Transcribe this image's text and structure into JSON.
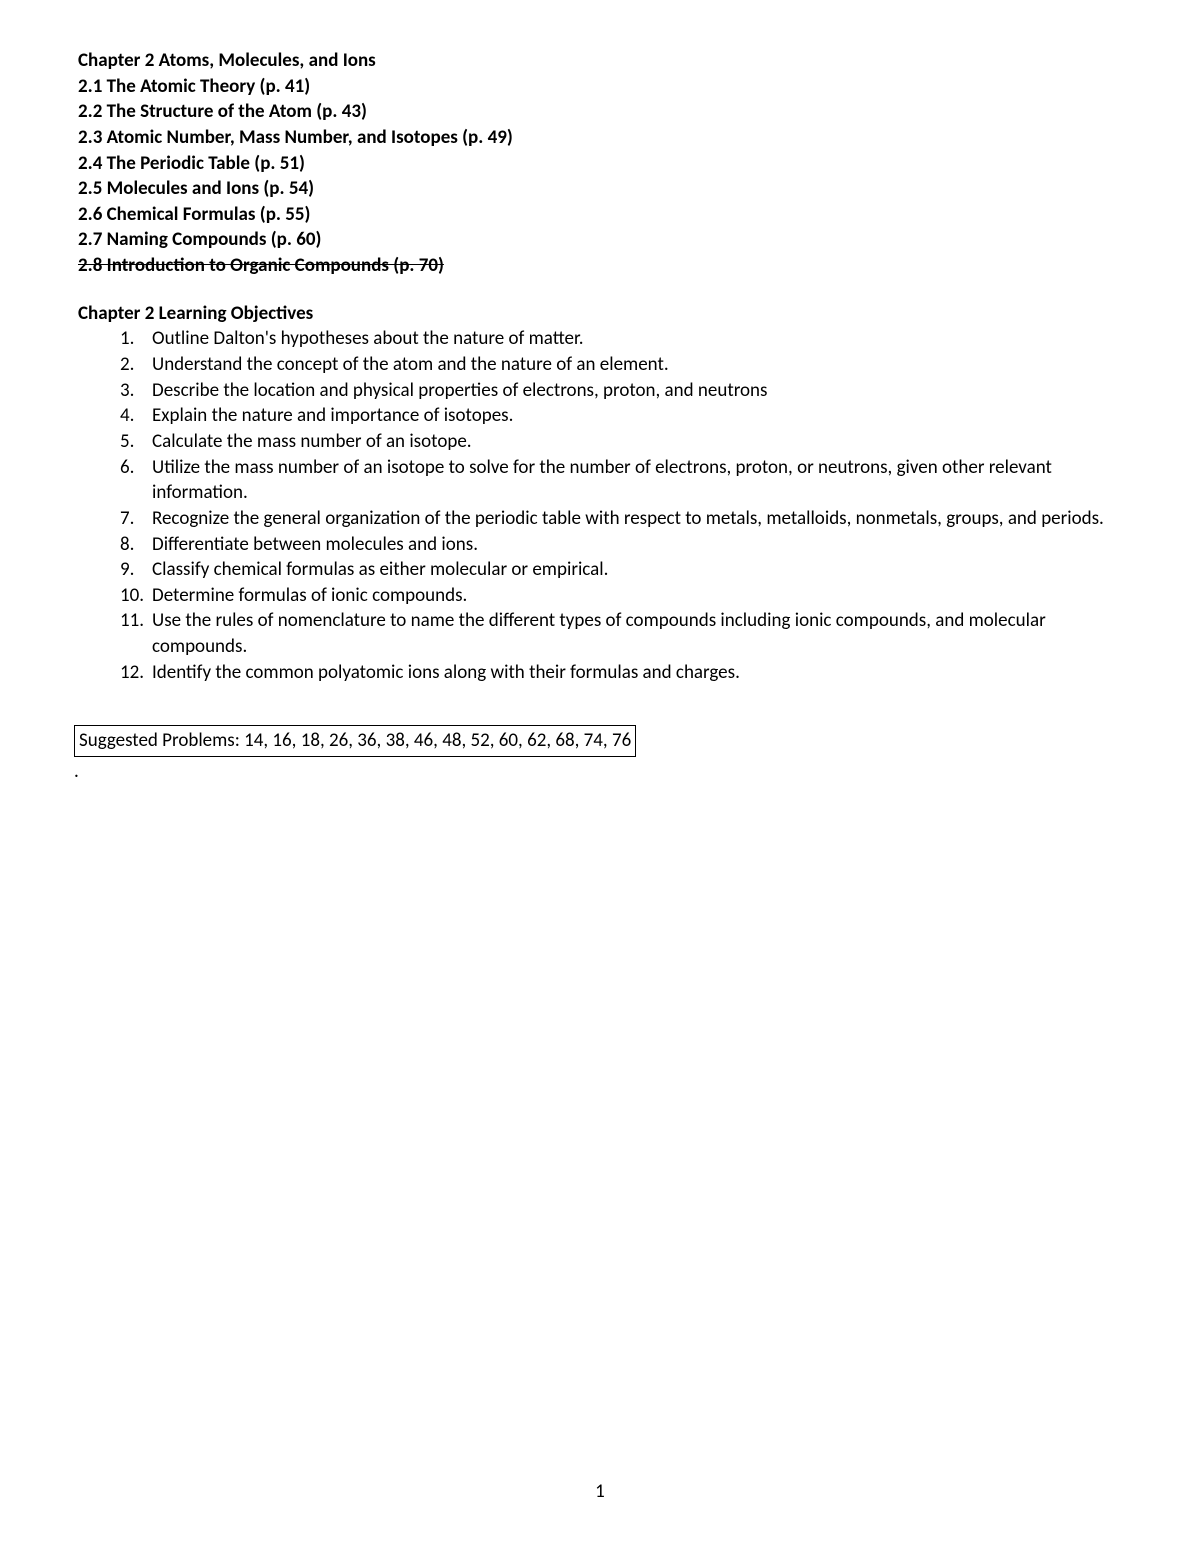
{
  "chapter": {
    "title": "Chapter 2 Atoms, Molecules, and Ions",
    "sections": [
      {
        "text": "2.1 The Atomic Theory (p. 41)",
        "strike": false
      },
      {
        "text": "2.2 The Structure of the Atom (p. 43)",
        "strike": false
      },
      {
        "text": "2.3 Atomic Number, Mass Number, and Isotopes (p. 49)",
        "strike": false
      },
      {
        "text": "2.4 The Periodic Table (p. 51)",
        "strike": false
      },
      {
        "text": "2.5 Molecules and Ions (p. 54)",
        "strike": false
      },
      {
        "text": "2.6 Chemical Formulas (p. 55)",
        "strike": false
      },
      {
        "text": "2.7 Naming Compounds (p. 60)",
        "strike": false
      },
      {
        "text": "2.8 Introduction to Organic Compounds (p. 70)",
        "strike": true
      }
    ]
  },
  "objectives": {
    "title": "Chapter 2 Learning Objectives",
    "items": [
      "Outline Dalton's hypotheses about the nature of matter.",
      "Understand the concept of the atom and the nature of an element.",
      "Describe the location and physical properties of electrons, proton, and neutrons",
      "Explain the nature and importance of isotopes.",
      "Calculate the mass number of an isotope.",
      "Utilize the mass number of an isotope to solve for the number of electrons, proton, or neutrons, given other relevant information.",
      "Recognize the general organization of the periodic table with respect to metals, metalloids, nonmetals, groups, and periods.",
      "Differentiate between molecules and ions.",
      "Classify chemical formulas as either molecular or empirical.",
      "Determine formulas of ionic compounds.",
      "Use the rules of nomenclature to name the different types of compounds including ionic compounds, and molecular compounds.",
      "Identify the common polyatomic ions along with their formulas and charges."
    ]
  },
  "suggested_problems": "Suggested Problems:  14, 16, 18, 26, 36, 38, 46, 48, 52, 60, 62, 68, 74, 76",
  "page_number": "1",
  "colors": {
    "text": "#000000",
    "background": "#ffffff",
    "border": "#000000"
  },
  "typography": {
    "font_family": "Calibri, Arial, sans-serif",
    "body_fontsize": 19,
    "bold_weight": 700
  }
}
